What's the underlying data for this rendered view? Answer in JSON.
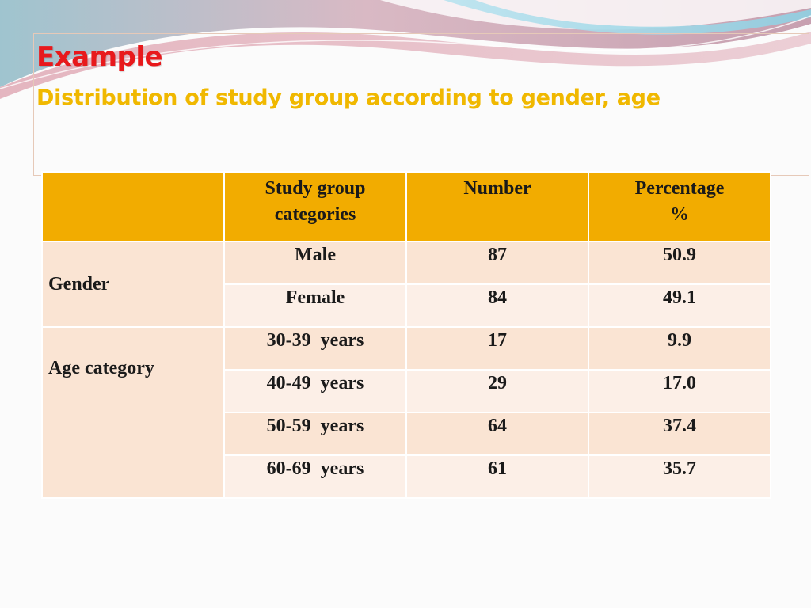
{
  "slide": {
    "title": "Example",
    "subtitle": "Distribution of study group according to gender, age"
  },
  "table": {
    "headers": [
      "",
      "Study group\ncategories",
      "Number",
      "Percentage\n%"
    ],
    "header_cat_line1": "Study group",
    "header_cat_line2": "categories",
    "header_number": "Number",
    "header_pct_line1": "Percentage",
    "header_pct_line2": "%",
    "groups": [
      {
        "label": "Gender",
        "rows": [
          {
            "category": "Male",
            "number": "87",
            "percentage": "50.9"
          },
          {
            "category": "Female",
            "number": "84",
            "percentage": "49.1"
          }
        ]
      },
      {
        "label": "Age category",
        "rows": [
          {
            "category": "30-39  years",
            "number": "17",
            "percentage": "9.9"
          },
          {
            "category": "40-49  years",
            "number": "29",
            "percentage": "17.0"
          },
          {
            "category": "50-59  years",
            "number": "64",
            "percentage": "37.4"
          },
          {
            "category": "60-69  years",
            "number": "61",
            "percentage": "35.7"
          }
        ]
      }
    ]
  },
  "colors": {
    "title": "#e8191c",
    "subtitle": "#f0b800",
    "header_bg": "#f2ac00",
    "row_dark": "#fae4d3",
    "row_light": "#fcefe7"
  }
}
